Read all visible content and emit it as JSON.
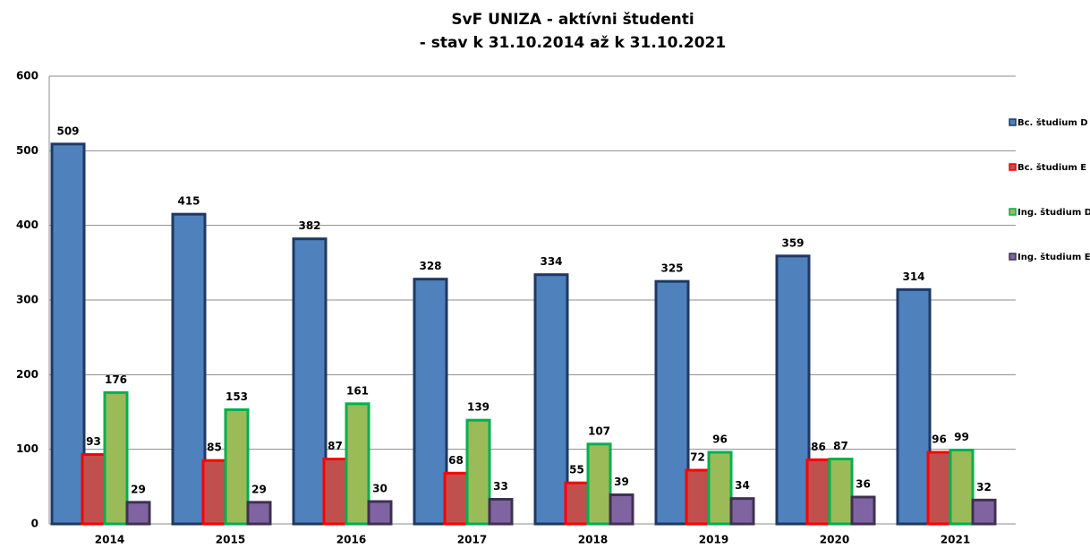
{
  "chart_data": {
    "type": "bar",
    "title": [
      "SvF UNIZA - aktívni študenti",
      "- stav k 31.10.2014 až k 31.10.2021"
    ],
    "categories": [
      "2014",
      "2015",
      "2016",
      "2017",
      "2018",
      "2019",
      "2020",
      "2021"
    ],
    "series": [
      {
        "name": "Bc. študium D",
        "color": "#4f81bd",
        "values": [
          509,
          415,
          382,
          328,
          334,
          325,
          359,
          314
        ]
      },
      {
        "name": "Bc. študium E",
        "color": "#c0504d",
        "values": [
          93,
          85,
          87,
          68,
          55,
          72,
          86,
          96
        ]
      },
      {
        "name": "Ing. študium D",
        "color": "#9bbb59",
        "values": [
          176,
          153,
          161,
          139,
          107,
          96,
          87,
          99
        ]
      },
      {
        "name": "Ing. študium E",
        "color": "#8064a2",
        "values": [
          29,
          29,
          30,
          33,
          39,
          34,
          36,
          32
        ]
      }
    ],
    "ylim": [
      0,
      600
    ],
    "yticks": [
      0,
      100,
      200,
      300,
      400,
      500,
      600
    ],
    "grid": true,
    "legend": "right"
  }
}
